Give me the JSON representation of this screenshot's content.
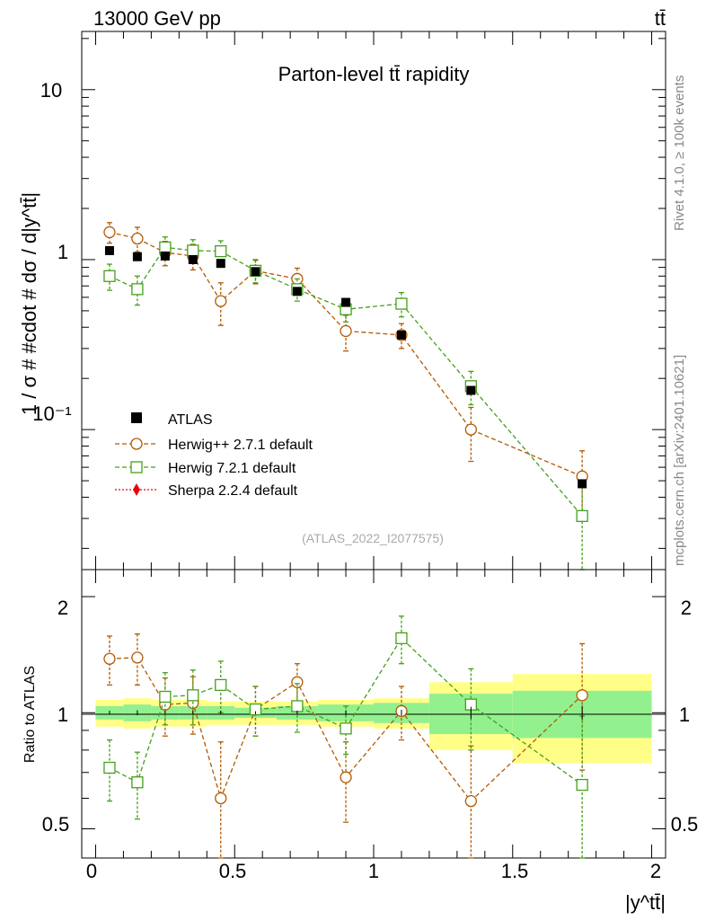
{
  "header": {
    "energy_label": "13000 GeV pp",
    "process_label": "tt̄"
  },
  "side_labels": {
    "rivet": "Rivet 4.1.0, ≥ 100k events",
    "mcplots": "mcplots.cern.ch [arXiv:2401.10621]"
  },
  "chart_data": {
    "type": "scatter",
    "title": "Parton-level tt̄ rapidity",
    "analysis_id": "(ATLAS_2022_I2077575)",
    "xlabel": "|y^tt̄|",
    "ylabel": "1 / σ # #cdot # dσ / d|y^tt̄|",
    "ratio_ylabel": "Ratio to ATLAS",
    "yscale": "log",
    "xlim": [
      -0.05,
      2.05
    ],
    "ylim": [
      0.015,
      22
    ],
    "ratio_ylim": [
      0.42,
      2.35
    ],
    "x_ticks": [
      0,
      0.5,
      1,
      1.5,
      2
    ],
    "x_tick_labels": [
      "0",
      "0.5",
      "1",
      "1.5",
      "2"
    ],
    "y_tick_labels": [
      "10",
      "1",
      "10⁻¹"
    ],
    "ratio_tick_labels": [
      "2",
      "1",
      "0.5"
    ],
    "legend_position": "lower-left",
    "bins": [
      [
        0,
        0.1
      ],
      [
        0.1,
        0.2
      ],
      [
        0.2,
        0.3
      ],
      [
        0.3,
        0.4
      ],
      [
        0.4,
        0.5
      ],
      [
        0.5,
        0.65
      ],
      [
        0.65,
        0.8
      ],
      [
        0.8,
        1.0
      ],
      [
        1.0,
        1.2
      ],
      [
        1.2,
        1.5
      ],
      [
        1.5,
        2.0
      ]
    ],
    "x": [
      0.05,
      0.15,
      0.25,
      0.35,
      0.45,
      0.575,
      0.725,
      0.9,
      1.1,
      1.35,
      1.75
    ],
    "data": {
      "name": "ATLAS",
      "values": [
        1.13,
        1.04,
        1.05,
        1.0,
        0.95,
        0.85,
        0.65,
        0.56,
        0.36,
        0.17,
        0.048
      ],
      "band_inner": [
        0.04,
        0.05,
        0.04,
        0.04,
        0.04,
        0.03,
        0.04,
        0.05,
        0.06,
        0.12,
        0.14
      ],
      "band_outer": [
        0.08,
        0.09,
        0.08,
        0.08,
        0.07,
        0.07,
        0.07,
        0.08,
        0.09,
        0.2,
        0.26
      ]
    },
    "series": [
      {
        "name": "Herwig++ 2.7.1 default",
        "color": "#b35900",
        "marker": "circle",
        "values": [
          1.45,
          1.33,
          1.1,
          1.05,
          0.57,
          0.86,
          0.77,
          0.38,
          0.36,
          0.1,
          0.053
        ],
        "errors": [
          0.2,
          0.22,
          0.18,
          0.18,
          0.16,
          0.14,
          0.12,
          0.09,
          0.06,
          0.035,
          0.022
        ],
        "ratio": [
          1.38,
          1.39,
          1.05,
          1.06,
          0.6,
          1.02,
          1.2,
          0.68,
          1.01,
          0.59,
          1.11
        ],
        "ratio_errors": [
          0.2,
          0.21,
          0.18,
          0.18,
          0.24,
          0.15,
          0.14,
          0.16,
          0.16,
          0.23,
          0.4
        ]
      },
      {
        "name": "Herwig 7.2.1 default",
        "color": "#44a01a",
        "marker": "square",
        "values": [
          0.8,
          0.67,
          1.18,
          1.13,
          1.12,
          0.86,
          0.67,
          0.51,
          0.55,
          0.18,
          0.031
        ],
        "errors": [
          0.14,
          0.13,
          0.18,
          0.18,
          0.17,
          0.13,
          0.1,
          0.08,
          0.09,
          0.04,
          0.016
        ],
        "ratio": [
          0.72,
          0.66,
          1.1,
          1.11,
          1.18,
          1.02,
          1.04,
          0.91,
          1.56,
          1.05,
          0.65
        ],
        "ratio_errors": [
          0.13,
          0.13,
          0.17,
          0.18,
          0.18,
          0.15,
          0.15,
          0.13,
          0.22,
          0.25,
          0.33
        ]
      },
      {
        "name": "Sherpa 2.2.4 default",
        "color": "#e8000b",
        "marker": "diamond",
        "values": [],
        "errors": [],
        "ratio": [],
        "ratio_errors": []
      }
    ]
  }
}
